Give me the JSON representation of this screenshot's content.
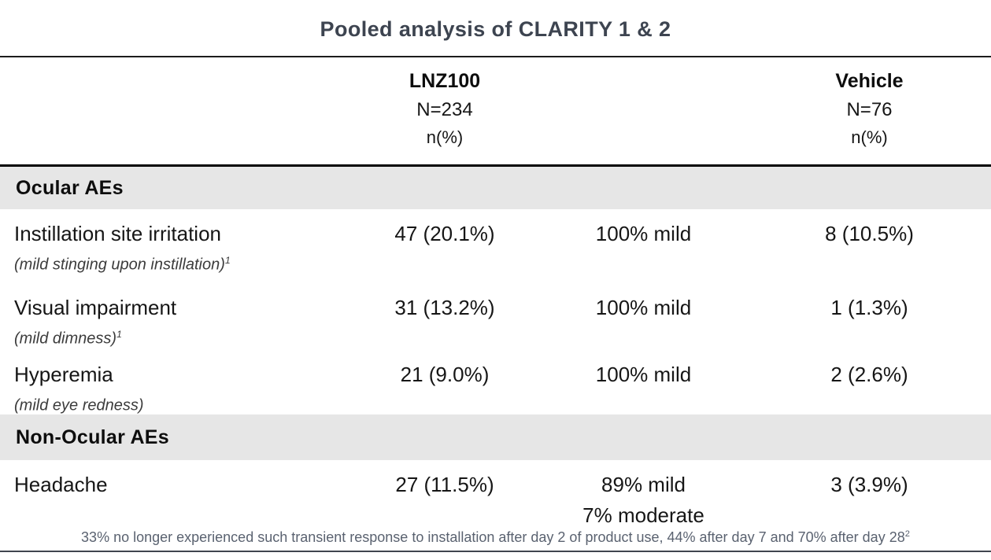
{
  "title": "Pooled analysis of CLARITY 1 & 2",
  "header": {
    "lnz100": {
      "name": "LNZ100",
      "n": "N=234",
      "unit": "n(%)"
    },
    "vehicle": {
      "name": "Vehicle",
      "n": "N=76",
      "unit": "n(%)"
    }
  },
  "sections": [
    {
      "header": "Ocular AEs",
      "rows": [
        {
          "label": "Instillation site irritation",
          "sublabel": "(mild stinging upon instillation)",
          "sublabel_sup": "1",
          "lnz100": "47 (20.1%)",
          "severity": "100% mild",
          "vehicle": "8 (10.5%)"
        },
        {
          "label": "Visual impairment",
          "sublabel": "(mild dimness)",
          "sublabel_sup": "1",
          "lnz100": "31 (13.2%)",
          "severity": "100% mild",
          "vehicle": "1 (1.3%)"
        },
        {
          "label": "Hyperemia",
          "sublabel": "(mild eye redness)",
          "sublabel_sup": "",
          "lnz100": "21 (9.0%)",
          "severity": "100% mild",
          "vehicle": "2 (2.6%)"
        }
      ]
    },
    {
      "header": "Non-Ocular AEs",
      "rows": [
        {
          "label": "Headache",
          "lnz100": "27 (11.5%)",
          "severity": "89% mild",
          "severity_line2": "7% moderate",
          "vehicle": "3 (3.9%)"
        }
      ]
    }
  ],
  "footnote": {
    "text": "33% no longer experienced such transient response to installation after day 2 of product use, 44% after day 7 and 70% after day 28",
    "sup": "2"
  },
  "colors": {
    "title": "#3d4450",
    "section_band_bg": "#e6e6e6",
    "footnote": "#5a6270",
    "text": "#161616",
    "header_rule": "#000000"
  }
}
